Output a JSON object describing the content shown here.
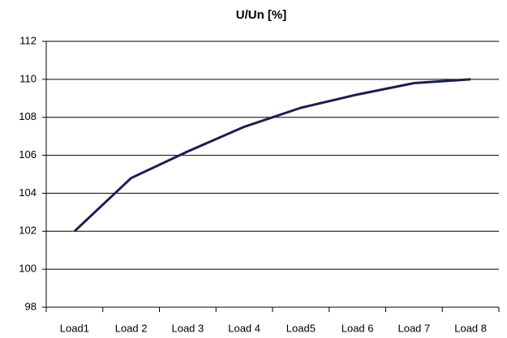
{
  "chart_data": {
    "type": "line",
    "title": "U/Un [%]",
    "categories": [
      "Load1",
      "Load 2",
      "Load 3",
      "Load 4",
      "Load5",
      "Load 6",
      "Load 7",
      "Load 8"
    ],
    "values": [
      102,
      104.8,
      106.2,
      107.5,
      108.5,
      109.2,
      109.8,
      110.0
    ],
    "color": "#1b1f4f",
    "ylim": [
      98,
      112
    ],
    "yticks": [
      98,
      100,
      102,
      104,
      106,
      108,
      110,
      112
    ],
    "grid": true
  }
}
